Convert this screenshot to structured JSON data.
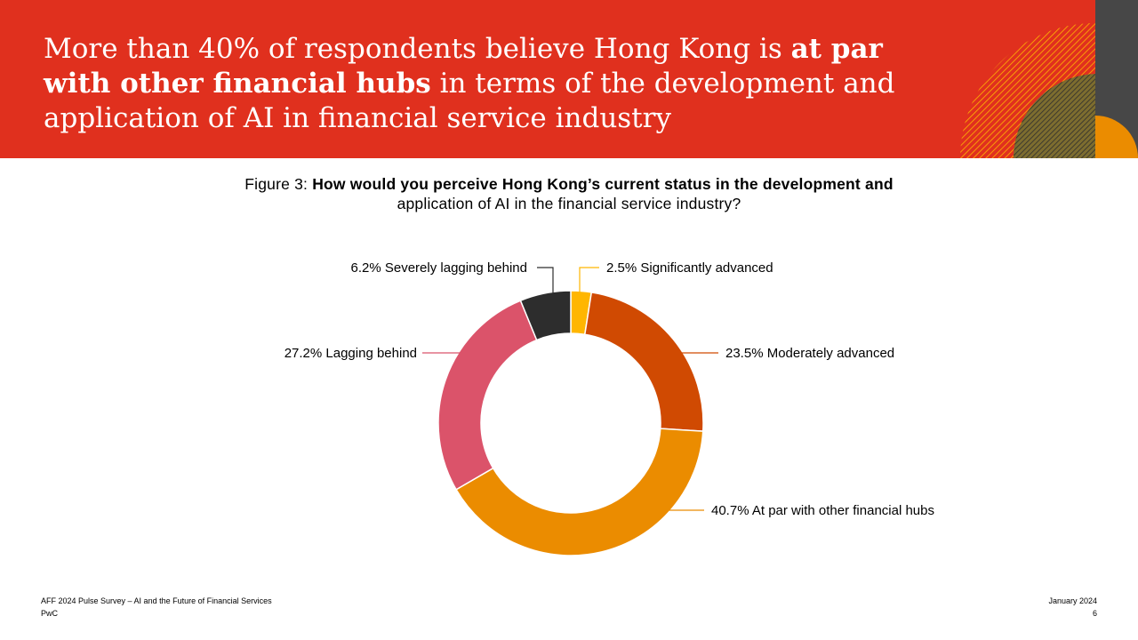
{
  "header": {
    "headline_part1": "More than 40% of respondents believe Hong Kong is ",
    "headline_bold1": "at par with other financial hubs",
    "headline_part2": " in terms of the development and application of AI in financial service industry",
    "accent_color": "#e0301e"
  },
  "figure": {
    "prefix": "Figure 3: ",
    "question_bold": "How would you perceive Hong Kong’s current status in the development and",
    "question_rest": "application of AI in the financial service industry?"
  },
  "chart_data": {
    "type": "pie",
    "style": "donut",
    "slices": [
      {
        "label": "Significantly advanced",
        "value": 2.5,
        "display": "2.5% Significantly advanced",
        "color": "#ffb600"
      },
      {
        "label": "Moderately advanced",
        "value": 23.5,
        "display": "23.5% Moderately advanced",
        "color": "#d04a02"
      },
      {
        "label": "At par with other financial hubs",
        "value": 40.7,
        "display": "40.7% At par with other financial hubs",
        "color": "#eb8c00"
      },
      {
        "label": "Lagging behind",
        "value": 27.2,
        "display": "27.2% Lagging behind",
        "color": "#db536a"
      },
      {
        "label": "Severely lagging behind",
        "value": 6.2,
        "display": "6.2% Severely lagging behind",
        "color": "#2d2d2d"
      }
    ]
  },
  "footer": {
    "survey": "AFF 2024 Pulse Survey – AI and the Future of Financial Services",
    "company": "PwC",
    "date": "January 2024",
    "page": "6"
  }
}
